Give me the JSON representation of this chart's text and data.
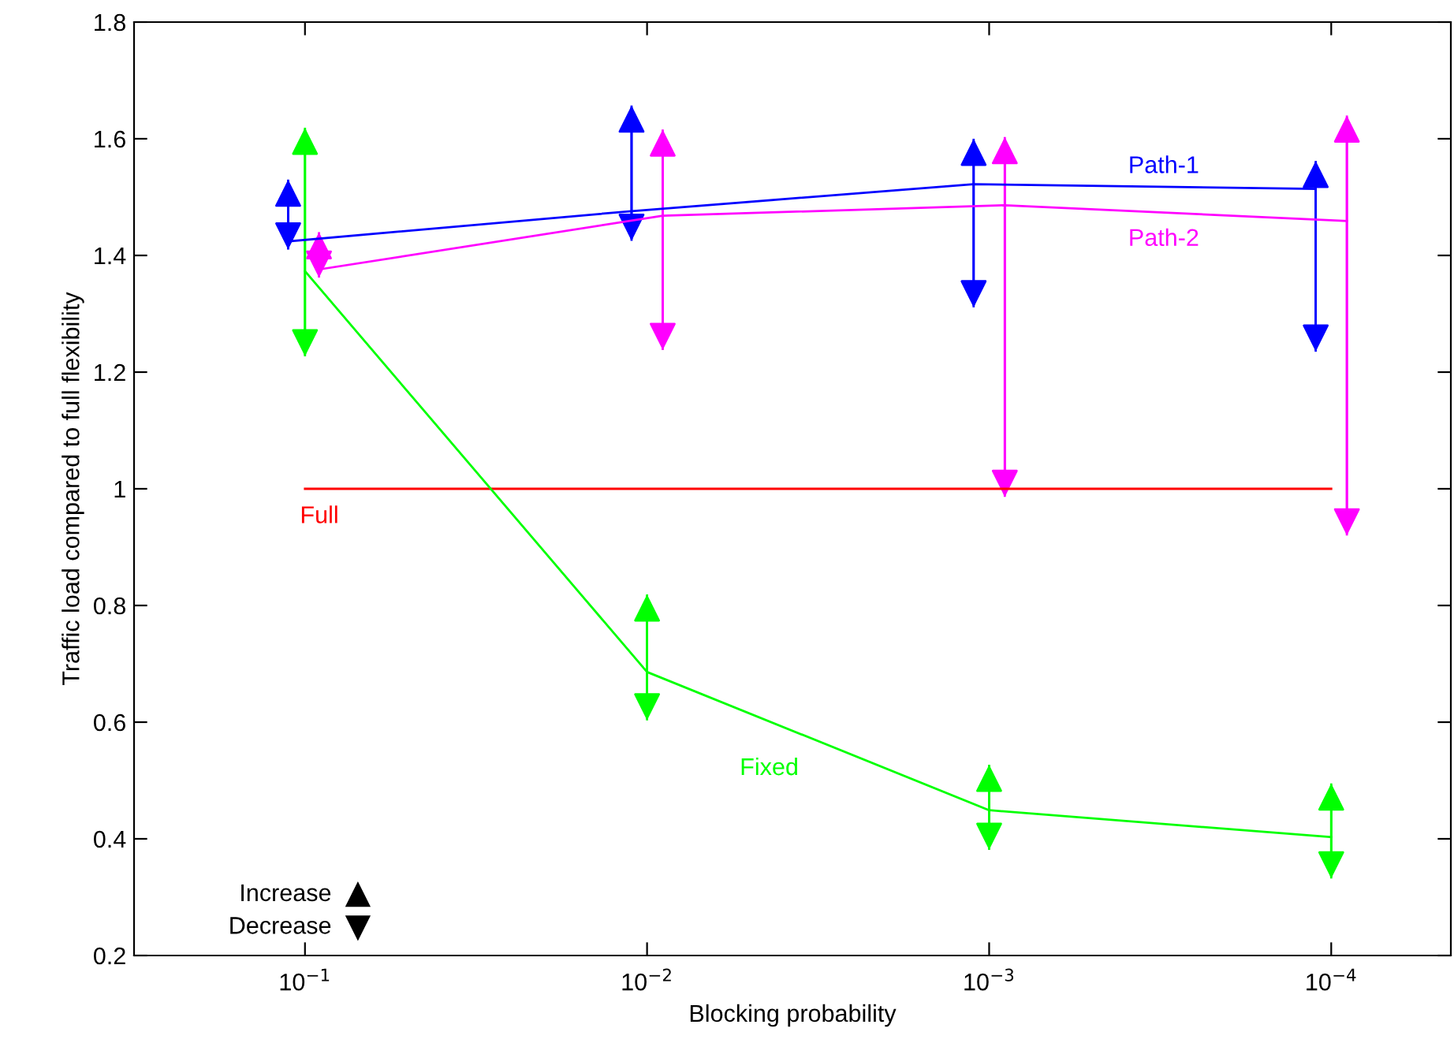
{
  "chart_data": {
    "type": "line",
    "xlabel": "Blocking probability",
    "ylabel": "Traffic load compared to full flexibility",
    "log": "x",
    "xlim": [
      0.316,
      4.47e-05
    ],
    "ylim": [
      0.2,
      1.8
    ],
    "xticks": [
      {
        "value": 0.1,
        "label": "10$^{−1}$"
      },
      {
        "value": 0.01,
        "label": "10$^{−2}$"
      },
      {
        "value": 0.001,
        "label": "10$^{−3}$"
      },
      {
        "value": 0.0001,
        "label": "10$^{−4}$"
      }
    ],
    "yticks": [
      0.2,
      0.4,
      0.6,
      0.8,
      1,
      1.2,
      1.4,
      1.6,
      1.8
    ],
    "grid": false,
    "marker": "none",
    "line_style": "solid",
    "annotations": [
      "Increase",
      "Decrease"
    ],
    "series": [
      {
        "name": "Path-1",
        "color": "#0000ff",
        "x": [
          0.112,
          0.0111,
          0.00111,
          0.000111
        ],
        "values": [
          1.424,
          1.476,
          1.522,
          1.514
        ],
        "errors": [
          [
            1.41,
            1.53
          ],
          [
            1.425,
            1.657
          ],
          [
            1.311,
            1.6
          ],
          [
            1.235,
            1.562
          ]
        ]
      },
      {
        "name": "Path-2",
        "color": "#ff00ff",
        "x": [
          0.091,
          0.009,
          0.0009,
          9e-05
        ],
        "values": [
          1.376,
          1.468,
          1.486,
          1.459
        ],
        "errors": [
          [
            1.362,
            1.44
          ],
          [
            1.238,
            1.616
          ],
          [
            0.986,
            1.603
          ],
          [
            0.92,
            1.64
          ]
        ]
      },
      {
        "name": "Full",
        "color": "#ff0000",
        "x": [
          0.1,
          0.01,
          0.001,
          0.0001
        ],
        "values": [
          1,
          1,
          1,
          1
        ]
      },
      {
        "name": "Fixed",
        "color": "#00ff00",
        "x": [
          0.1,
          0.01,
          0.001,
          0.0001
        ],
        "values": [
          1.373,
          0.686,
          0.449,
          0.403
        ],
        "errors": [
          [
            1.227,
            1.619
          ],
          [
            0.603,
            0.819
          ],
          [
            0.381,
            0.527
          ],
          [
            0.332,
            0.495
          ]
        ]
      }
    ]
  }
}
